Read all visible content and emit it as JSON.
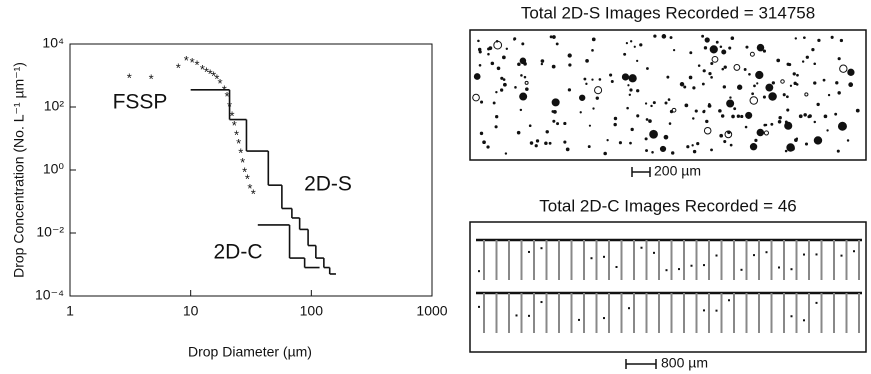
{
  "chart_data": {
    "type": "scatter",
    "x_label": "Drop Diameter (µm)",
    "y_label": "Drop Concentration (No. L⁻¹ µm⁻¹)",
    "log_x": true,
    "log_y": true,
    "xlim": [
      1,
      1000
    ],
    "xticks": [
      1,
      10,
      100,
      1000
    ],
    "ylim": [
      0.0001,
      10000
    ],
    "yticks": [
      {
        "value": 10000,
        "label": "10⁴"
      },
      {
        "value": 100,
        "label": "10²"
      },
      {
        "value": 1,
        "label": "10⁰"
      },
      {
        "value": 0.01,
        "label": "10⁻²"
      },
      {
        "value": 0.0001,
        "label": "10⁻⁴"
      }
    ],
    "series": [
      {
        "name": "FSSP",
        "type": "scatter",
        "color": "#222222",
        "x": [
          3.1,
          4.7,
          7.9,
          9.2,
          10.3,
          11.3,
          12.5,
          13.5,
          14.5,
          15.5,
          16.5,
          17.5,
          19,
          20,
          21,
          22,
          23,
          24,
          25,
          26,
          27,
          28,
          29.5,
          31,
          33
        ],
        "values": [
          950,
          900,
          2000,
          3500,
          3000,
          2500,
          1800,
          1500,
          1300,
          1100,
          900,
          650,
          400,
          250,
          120,
          60,
          30,
          15,
          8,
          4,
          2,
          1,
          0.6,
          0.3,
          0.2
        ]
      },
      {
        "name": "2D-S",
        "type": "step",
        "color": "#111111",
        "bins": [
          10,
          21,
          29,
          44,
          57,
          69,
          80,
          94,
          109,
          127,
          142,
          160
        ],
        "values": [
          350,
          40,
          4,
          0.33,
          0.06,
          0.03,
          0.013,
          0.004,
          0.0016,
          0.0008,
          0.0005
        ]
      },
      {
        "name": "2D-C",
        "type": "step",
        "color": "#111111",
        "bins": [
          36,
          66,
          88,
          117
        ],
        "values": [
          0.018,
          0.0016,
          0.0008
        ]
      }
    ]
  },
  "images": [
    {
      "title": "Total 2D-S Images Recorded = 314758",
      "scale": "200 µm"
    },
    {
      "title": "Total 2D-C Images Recorded = 46",
      "scale": "800 µm"
    }
  ]
}
